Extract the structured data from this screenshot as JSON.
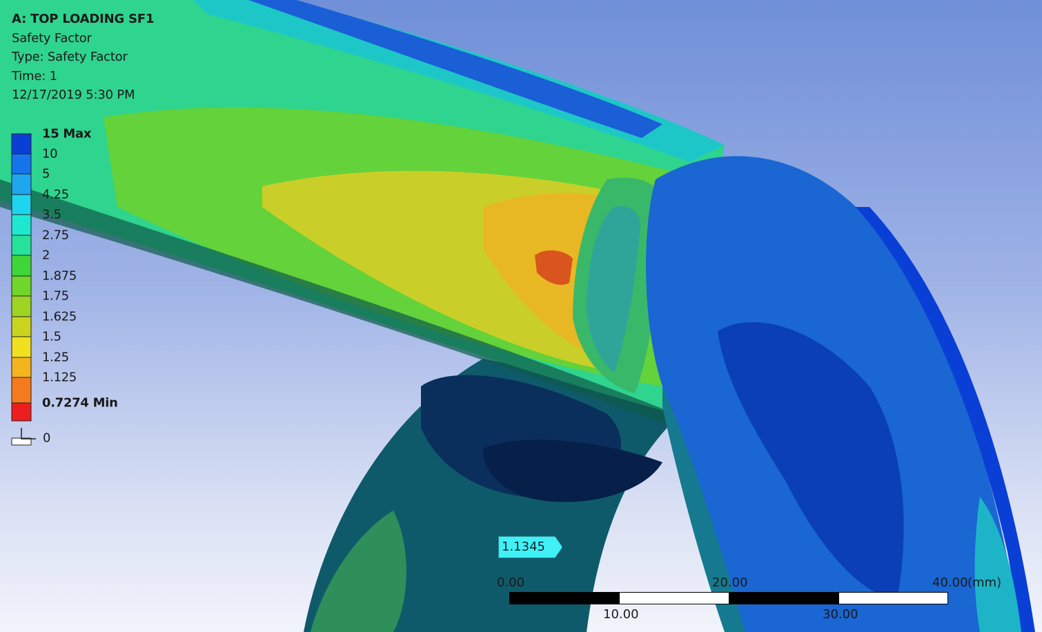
{
  "info": {
    "title": "A: TOP LOADING SF1",
    "result": "Safety Factor",
    "type": "Type: Safety Factor",
    "time": "Time: 1",
    "date": "12/17/2019 5:30 PM"
  },
  "legend": {
    "labels": [
      "15 Max",
      "10",
      "5",
      "4.25",
      "3.5",
      "2.75",
      "2",
      "1.875",
      "1.75",
      "1.625",
      "1.5",
      "1.25",
      "1.125",
      "0.7274 Min",
      "0"
    ],
    "colors": [
      "#0a3fd6",
      "#1673ee",
      "#1ea6ee",
      "#1ed4ee",
      "#1ee7d0",
      "#26e29c",
      "#3fd63a",
      "#6fd62a",
      "#9ed424",
      "#c8d41e",
      "#f0e020",
      "#f4b41e",
      "#f47a1e",
      "#ee1e1e",
      "#ffffff"
    ]
  },
  "probe": {
    "value": "1.1345"
  },
  "scale": {
    "unit": "(mm)",
    "top_labels": [
      "0.00",
      "20.00",
      "40.00"
    ],
    "bottom_labels": [
      "10.00",
      "30.00"
    ]
  }
}
